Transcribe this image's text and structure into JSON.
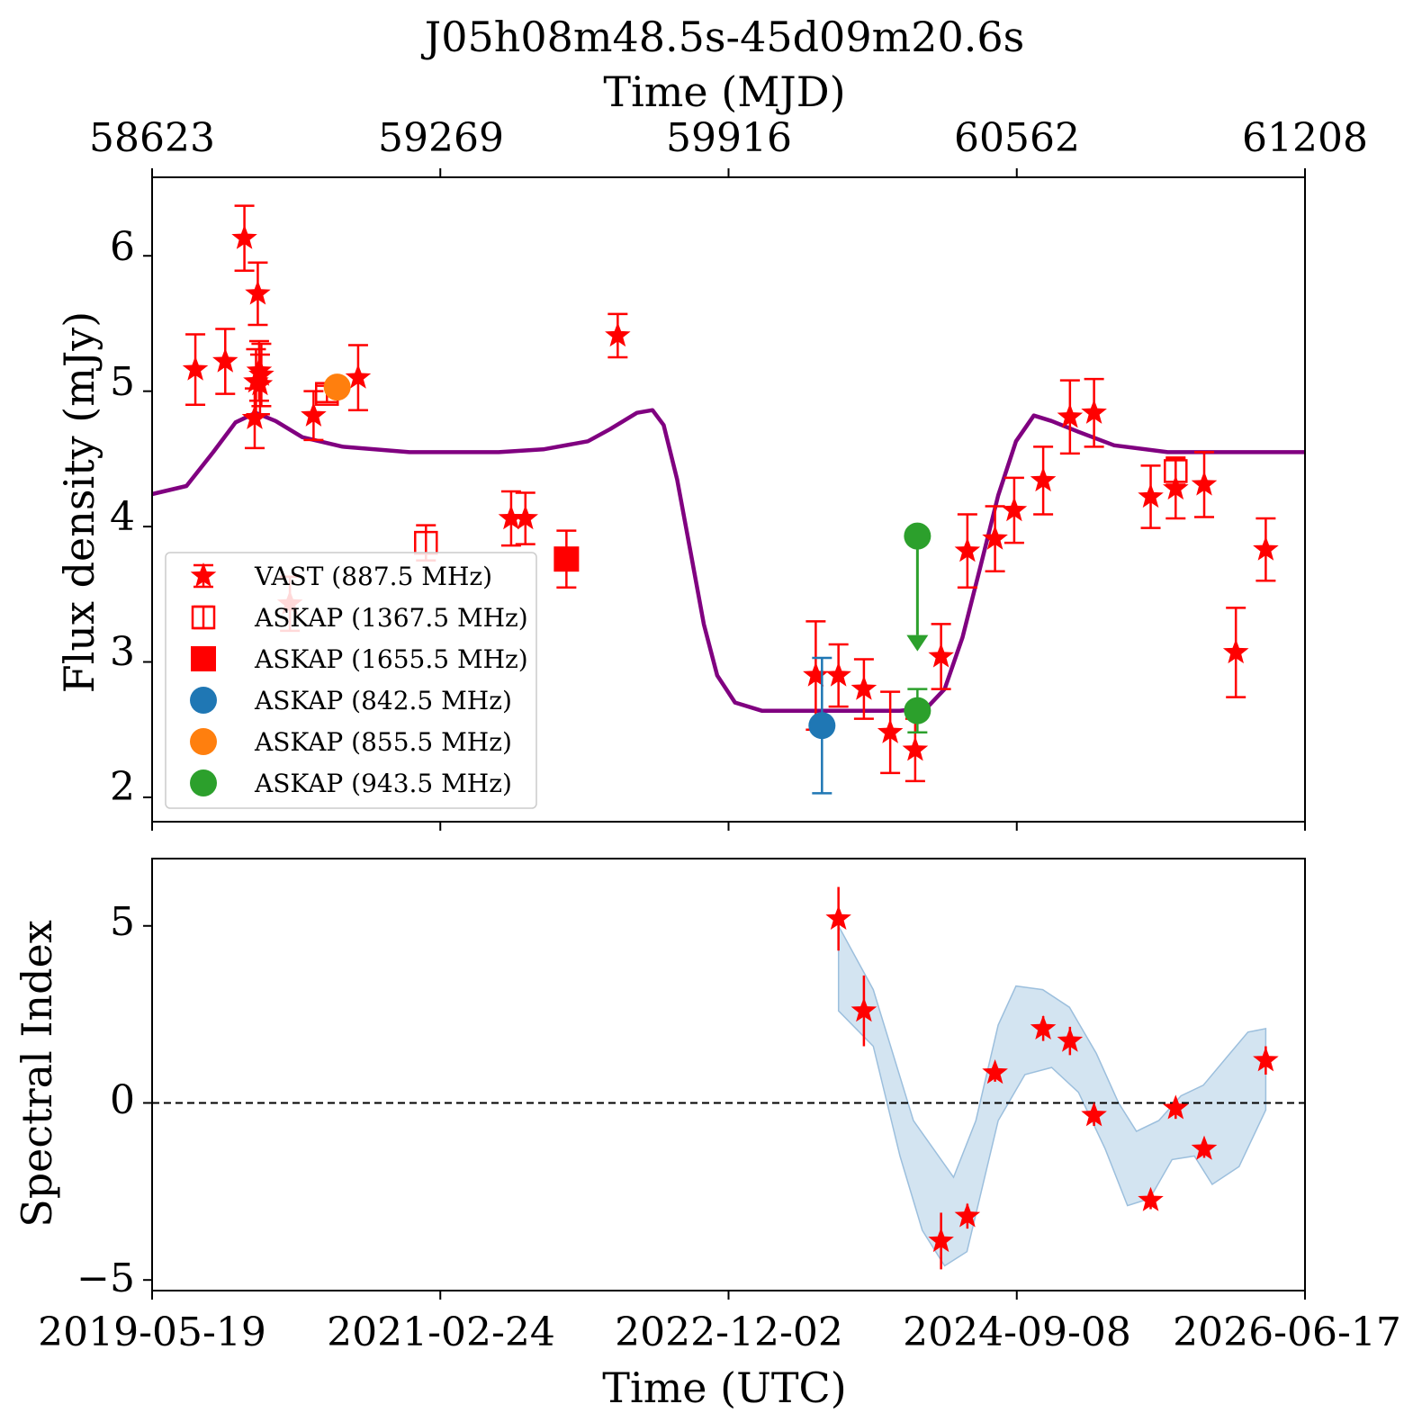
{
  "title": "J05h08m48.5s-45d09m20.6s",
  "top_axis": {
    "label": "Time (MJD)",
    "ticks": [
      "58623",
      "59269",
      "59916",
      "60562",
      "61208"
    ]
  },
  "bottom_axis": {
    "label": "Time (UTC)",
    "ticks": [
      "2019-05-19",
      "2021-02-24",
      "2022-12-02",
      "2024-09-08",
      "2026-06-17"
    ]
  },
  "colors": {
    "vast": "#ff0000",
    "askap_1367": "#ff0000",
    "askap_1655": "#ff0000",
    "askap_842": "#1f77b4",
    "askap_855": "#ff7f0e",
    "askap_943": "#2ca02c",
    "model": "#800080",
    "band_fill": "#aecde6",
    "band_edge": "#9cbfdd"
  },
  "chart_data": [
    {
      "type": "scatter",
      "ylabel": "Flux density (mJy)",
      "xlim_mjd": [
        58623,
        61208
      ],
      "ylim": [
        1.82,
        6.58
      ],
      "yticks": [
        "2",
        "3",
        "4",
        "5",
        "6"
      ],
      "legend_position": "lower-left",
      "legend": [
        {
          "label": "VAST (887.5 MHz)",
          "marker": "star",
          "color": "#ff0000"
        },
        {
          "label": "ASKAP (1367.5 MHz)",
          "marker": "open-square",
          "color": "#ff0000"
        },
        {
          "label": "ASKAP (1655.5 MHz)",
          "marker": "square",
          "color": "#ff0000"
        },
        {
          "label": "ASKAP (842.5 MHz)",
          "marker": "circle",
          "color": "#1f77b4"
        },
        {
          "label": "ASKAP (855.5 MHz)",
          "marker": "circle",
          "color": "#ff7f0e"
        },
        {
          "label": "ASKAP (943.5 MHz)",
          "marker": "circle",
          "color": "#2ca02c"
        }
      ],
      "series": [
        {
          "name": "VAST (887.5 MHz)",
          "marker": "star",
          "color": "#ff0000",
          "points": [
            [
              58720,
              5.16,
              0.26
            ],
            [
              58787,
              5.22,
              0.24
            ],
            [
              58830,
              6.13,
              0.24
            ],
            [
              58853,
              4.8,
              0.22
            ],
            [
              58856,
              5.07,
              0.24
            ],
            [
              58860,
              5.72,
              0.23
            ],
            [
              58863,
              5.15,
              0.22
            ],
            [
              58865,
              5.05,
              0.22
            ],
            [
              58868,
              5.12,
              0.23
            ],
            [
              58932,
              3.43,
              0.2
            ],
            [
              58985,
              4.82,
              0.18
            ],
            [
              59085,
              5.1,
              0.24
            ],
            [
              59428,
              4.06,
              0.2
            ],
            [
              59460,
              4.06,
              0.19
            ],
            [
              59667,
              5.41,
              0.16
            ],
            [
              60111,
              2.9,
              0.4
            ],
            [
              60162,
              2.9,
              0.23
            ],
            [
              60219,
              2.8,
              0.22
            ],
            [
              60278,
              2.48,
              0.3
            ],
            [
              60334,
              2.35,
              0.23
            ],
            [
              60392,
              3.04,
              0.24
            ],
            [
              60451,
              3.82,
              0.27
            ],
            [
              60513,
              3.91,
              0.24
            ],
            [
              60556,
              4.12,
              0.24
            ],
            [
              60621,
              4.34,
              0.25
            ],
            [
              60681,
              4.81,
              0.27
            ],
            [
              60735,
              4.84,
              0.25
            ],
            [
              60862,
              4.22,
              0.23
            ],
            [
              60918,
              4.28,
              0.22
            ],
            [
              60982,
              4.31,
              0.24
            ],
            [
              61053,
              3.07,
              0.33
            ],
            [
              61120,
              3.83,
              0.23
            ]
          ]
        },
        {
          "name": "ASKAP (1367.5 MHz)",
          "marker": "open-square",
          "color": "#ff0000",
          "points": [
            [
              59237,
              3.88,
              0.13
            ],
            [
              59015,
              4.98,
              0.06
            ],
            [
              60918,
              4.41,
              0.1
            ]
          ]
        },
        {
          "name": "ASKAP (1655.5 MHz)",
          "marker": "square",
          "color": "#ff0000",
          "points": [
            [
              59552,
              3.76,
              0.21
            ]
          ]
        },
        {
          "name": "ASKAP (842.5 MHz)",
          "marker": "circle",
          "color": "#1f77b4",
          "points": [
            [
              60125,
              2.53,
              0.5
            ]
          ]
        },
        {
          "name": "ASKAP (855.5 MHz)",
          "marker": "circle",
          "color": "#ff7f0e",
          "points": [
            [
              59038,
              5.03,
              0.0
            ]
          ]
        },
        {
          "name": "ASKAP (943.5 MHz)",
          "marker": "circle",
          "color": "#2ca02c",
          "points": [
            [
              60339,
              2.64,
              0.16
            ]
          ]
        },
        {
          "name": "ASKAP (943.5 MHz) upper limit",
          "marker": "circle-arrow-down",
          "color": "#2ca02c",
          "points": [
            [
              60339,
              3.93,
              0.0
            ]
          ]
        }
      ],
      "model_curve": [
        [
          58623,
          4.24
        ],
        [
          58700,
          4.3
        ],
        [
          58760,
          4.55
        ],
        [
          58810,
          4.77
        ],
        [
          58855,
          4.84
        ],
        [
          58900,
          4.78
        ],
        [
          58960,
          4.66
        ],
        [
          59050,
          4.59
        ],
        [
          59200,
          4.55
        ],
        [
          59400,
          4.55
        ],
        [
          59500,
          4.57
        ],
        [
          59600,
          4.63
        ],
        [
          59650,
          4.72
        ],
        [
          59710,
          4.84
        ],
        [
          59745,
          4.86
        ],
        [
          59770,
          4.75
        ],
        [
          59800,
          4.35
        ],
        [
          59830,
          3.82
        ],
        [
          59860,
          3.28
        ],
        [
          59890,
          2.9
        ],
        [
          59930,
          2.7
        ],
        [
          59990,
          2.64
        ],
        [
          60300,
          2.64
        ],
        [
          60360,
          2.66
        ],
        [
          60400,
          2.8
        ],
        [
          60440,
          3.18
        ],
        [
          60480,
          3.7
        ],
        [
          60520,
          4.23
        ],
        [
          60560,
          4.63
        ],
        [
          60600,
          4.82
        ],
        [
          60640,
          4.78
        ],
        [
          60700,
          4.7
        ],
        [
          60780,
          4.6
        ],
        [
          60900,
          4.55
        ],
        [
          61208,
          4.55
        ]
      ]
    },
    {
      "type": "scatter",
      "ylabel": "Spectral Index",
      "xlim_mjd": [
        58623,
        61208
      ],
      "ylim": [
        -5.3,
        6.9
      ],
      "yticks": [
        "−5",
        "0",
        "5"
      ],
      "reference_line": 0,
      "series": [
        {
          "name": "VAST (887.5 MHz)",
          "marker": "star",
          "color": "#ff0000",
          "points": [
            [
              60162,
              5.2,
              0.9
            ],
            [
              60219,
              2.6,
              1.0
            ],
            [
              60392,
              -3.9,
              0.8
            ],
            [
              60451,
              -3.2,
              0.35
            ],
            [
              60513,
              0.85,
              0.25
            ],
            [
              60621,
              2.1,
              0.35
            ],
            [
              60681,
              1.75,
              0.4
            ],
            [
              60735,
              -0.35,
              0.3
            ],
            [
              60862,
              -2.75,
              0.25
            ],
            [
              60918,
              -0.15,
              0.3
            ],
            [
              60982,
              -1.3,
              0.25
            ],
            [
              61120,
              1.2,
              0.4
            ]
          ]
        }
      ],
      "band_upper": [
        [
          60162,
          5.0
        ],
        [
          60240,
          3.2
        ],
        [
          60330,
          -0.5
        ],
        [
          60420,
          -2.1
        ],
        [
          60470,
          -0.5
        ],
        [
          60520,
          2.2
        ],
        [
          60560,
          3.3
        ],
        [
          60620,
          3.2
        ],
        [
          60680,
          2.7
        ],
        [
          60740,
          1.4
        ],
        [
          60790,
          0.0
        ],
        [
          60830,
          -0.8
        ],
        [
          60880,
          -0.5
        ],
        [
          60930,
          0.2
        ],
        [
          60980,
          0.5
        ],
        [
          61040,
          1.4
        ],
        [
          61080,
          2.0
        ],
        [
          61120,
          2.1
        ]
      ],
      "band_lower": [
        [
          60162,
          2.6
        ],
        [
          60240,
          1.6
        ],
        [
          60300,
          -1.5
        ],
        [
          60350,
          -3.6
        ],
        [
          60400,
          -4.6
        ],
        [
          60450,
          -4.2
        ],
        [
          60520,
          -0.5
        ],
        [
          60580,
          0.8
        ],
        [
          60640,
          1.0
        ],
        [
          60700,
          0.3
        ],
        [
          60760,
          -1.3
        ],
        [
          60810,
          -2.9
        ],
        [
          60860,
          -2.7
        ],
        [
          60910,
          -1.6
        ],
        [
          60960,
          -1.5
        ],
        [
          61000,
          -2.3
        ],
        [
          61060,
          -1.8
        ],
        [
          61120,
          -0.2
        ]
      ]
    }
  ]
}
